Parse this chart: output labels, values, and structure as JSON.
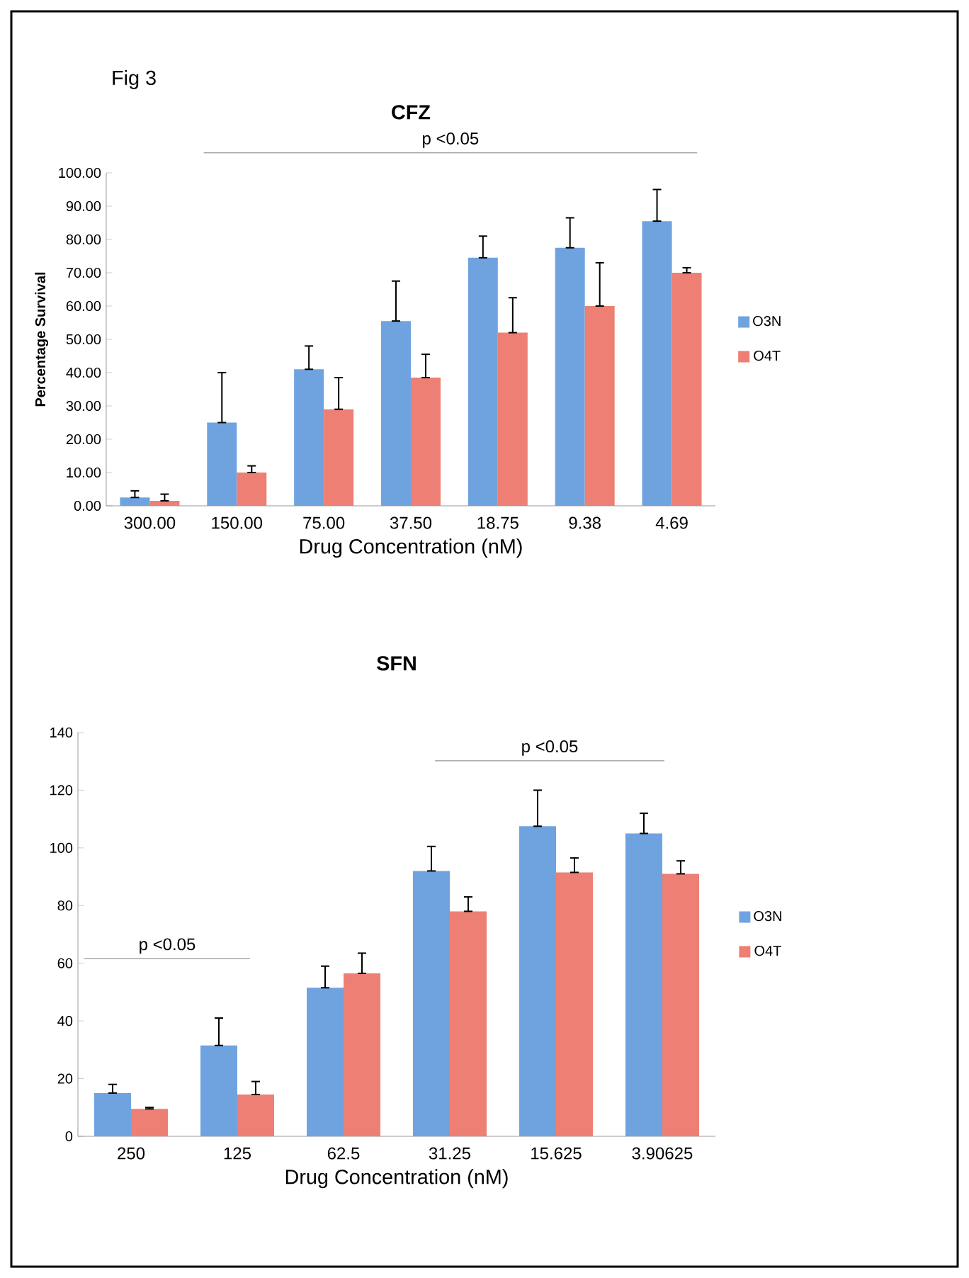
{
  "chart_data": [
    {
      "type": "bar",
      "title": "CFZ",
      "xlabel": "Drug Concentration (nM)",
      "ylabel": "Percentage Survival",
      "categories": [
        "300.00",
        "150.00",
        "75.00",
        "37.50",
        "18.75",
        "9.38",
        "4.69"
      ],
      "series": [
        {
          "name": "O3N",
          "color": "#6fa3e0",
          "values": [
            2.5,
            25,
            41,
            55.5,
            74.5,
            77.5,
            85.5
          ],
          "errors": [
            [
              2.5,
              4.5
            ],
            [
              25,
              40
            ],
            [
              41,
              48
            ],
            [
              55.5,
              67.5
            ],
            [
              74.5,
              81
            ],
            [
              77.5,
              86.5
            ],
            [
              85.5,
              95
            ]
          ]
        },
        {
          "name": "O4T",
          "color": "#ee7f74",
          "values": [
            1.5,
            10,
            29,
            38.5,
            52,
            60,
            70
          ],
          "errors": [
            [
              1.5,
              3.5
            ],
            [
              10,
              12
            ],
            [
              29,
              38.5
            ],
            [
              38.5,
              45.5
            ],
            [
              52,
              62.5
            ],
            [
              60,
              73
            ],
            [
              70,
              71.5
            ]
          ]
        }
      ],
      "ylim": [
        0,
        100
      ],
      "yticks": [
        {
          "value": 0,
          "label": "0.00"
        },
        {
          "value": 10,
          "label": "10.00"
        },
        {
          "value": 20,
          "label": "20.00"
        },
        {
          "value": 30,
          "label": "30.00"
        },
        {
          "value": 40,
          "label": "40.00"
        },
        {
          "value": 50,
          "label": "50.00"
        },
        {
          "value": 60,
          "label": "60.00"
        },
        {
          "value": 70,
          "label": "70.00"
        },
        {
          "value": 80,
          "label": "80.00"
        },
        {
          "value": 90,
          "label": "90.00"
        },
        {
          "value": 100,
          "label": "100.00"
        }
      ],
      "legend": "right",
      "grid": false,
      "annotations": [
        "Fig 3",
        "p <0.05"
      ]
    },
    {
      "type": "bar",
      "title": "SFN",
      "xlabel": "Drug Concentration (nM)",
      "categories": [
        "250",
        "125",
        "62.5",
        "31.25",
        "15.625",
        "3.90625"
      ],
      "series": [
        {
          "name": "O3N",
          "color": "#6fa3e0",
          "values": [
            15,
            31.5,
            51.5,
            92,
            107.5,
            105
          ],
          "errors": [
            [
              15,
              18
            ],
            [
              31.5,
              41
            ],
            [
              51.5,
              59
            ],
            [
              92,
              100.5
            ],
            [
              107.5,
              120
            ],
            [
              105,
              112
            ]
          ]
        },
        {
          "name": "O4T",
          "color": "#ee7f74",
          "values": [
            9.5,
            14.5,
            56.5,
            78,
            91.5,
            91
          ],
          "errors": [
            [
              9.5,
              10
            ],
            [
              14.5,
              19
            ],
            [
              56.5,
              63.5
            ],
            [
              78,
              83
            ],
            [
              91.5,
              96.5
            ],
            [
              91,
              95.5
            ]
          ]
        }
      ],
      "ylim": [
        0,
        140
      ],
      "yticks": [
        0,
        20,
        40,
        60,
        80,
        100,
        120,
        140
      ],
      "legend": "right",
      "grid": false,
      "annotations": [
        "p <0.05",
        "p <0.05"
      ]
    }
  ]
}
